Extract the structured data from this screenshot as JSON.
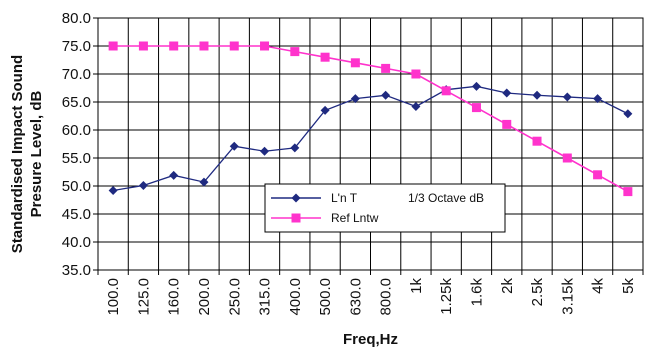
{
  "chart_data": {
    "type": "line",
    "xlabel": "Freq,Hz",
    "ylabel": [
      "Standardised Impact Sound",
      "Presure Level, dB"
    ],
    "categories": [
      "100.0",
      "125.0",
      "160.0",
      "200.0",
      "250.0",
      "315.0",
      "400.0",
      "500.0",
      "630.0",
      "800.0",
      "1k",
      "1.25k",
      "1.6k",
      "2k",
      "2.5k",
      "3.15k",
      "4k",
      "5k"
    ],
    "yticks": [
      "35.0",
      "40.0",
      "45.0",
      "50.0",
      "55.0",
      "60.0",
      "65.0",
      "70.0",
      "75.0",
      "80.0"
    ],
    "ylim": [
      35,
      80
    ],
    "grid": "vertical and horizontal",
    "legend_position": "lower-center",
    "series": [
      {
        "name": "L'n T",
        "name_suffix": "1/3 Octave  dB",
        "color": "#1f2a80",
        "marker": "diamond",
        "values": [
          49.2,
          50.1,
          51.9,
          50.7,
          57.1,
          56.2,
          56.8,
          63.5,
          65.6,
          66.2,
          64.2,
          67.2,
          67.8,
          66.6,
          66.2,
          65.9,
          65.6,
          62.9
        ]
      },
      {
        "name": "Ref Lntw",
        "color": "#ff33cc",
        "marker": "square",
        "values": [
          75,
          75,
          75,
          75,
          75,
          75,
          74,
          73,
          72,
          71,
          70,
          67,
          64,
          61,
          58,
          55,
          52,
          49
        ]
      }
    ]
  }
}
